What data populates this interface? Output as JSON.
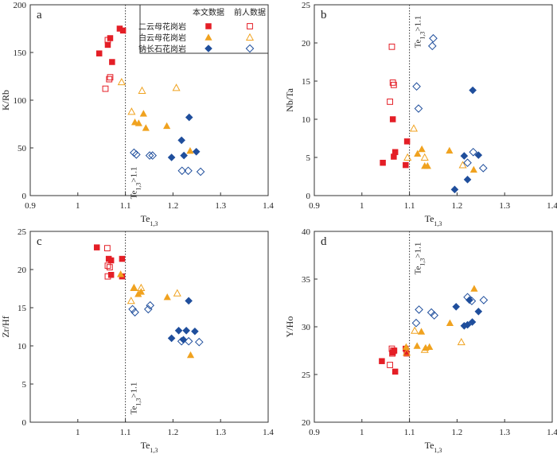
{
  "colors": {
    "red": "#e41e26",
    "orange": "#f0a21f",
    "blue": "#1f4e9c",
    "axis": "#333333"
  },
  "legend": {
    "header_this": "本文数据",
    "header_prev": "前人数据",
    "rows": [
      {
        "label": "二云母花岗岩",
        "marker": "square",
        "color": "#e41e26"
      },
      {
        "label": "白云母花岗岩",
        "marker": "triangle",
        "color": "#f0a21f"
      },
      {
        "label": "钠长石花岗岩",
        "marker": "diamond",
        "color": "#1f4e9c"
      }
    ]
  },
  "chart_data": [
    {
      "panel": "a",
      "type": "scatter",
      "xlabel": "Te1,3",
      "ylabel": "K/Rb",
      "xlim": [
        0.9,
        1.4
      ],
      "ylim": [
        0,
        200
      ],
      "xticks": [
        0.9,
        1.0,
        1.1,
        1.2,
        1.3,
        1.4
      ],
      "yticks": [
        0,
        50,
        100,
        150,
        200
      ],
      "ref_x": 1.1,
      "ref_label": "Te1,3>1.1",
      "series": [
        {
          "name": "二云母花岗岩 本文数据",
          "marker": "square",
          "color": "#e41e26",
          "filled": true,
          "x": [
            1.045,
            1.063,
            1.068,
            1.072,
            1.088,
            1.095
          ],
          "y": [
            149,
            158,
            165,
            140,
            175,
            173
          ]
        },
        {
          "name": "二云母花岗岩 前人数据",
          "marker": "square",
          "color": "#e41e26",
          "filled": false,
          "x": [
            1.058,
            1.063,
            1.066,
            1.068
          ],
          "y": [
            112,
            163,
            122,
            124
          ]
        },
        {
          "name": "白云母花岗岩 本文数据",
          "marker": "triangle",
          "color": "#f0a21f",
          "filled": true,
          "x": [
            1.12,
            1.128,
            1.138,
            1.143,
            1.187,
            1.236
          ],
          "y": [
            77,
            76,
            86,
            71,
            73,
            47
          ]
        },
        {
          "name": "白云母花岗岩 前人数据",
          "marker": "triangle",
          "color": "#f0a21f",
          "filled": false,
          "x": [
            1.092,
            1.113,
            1.135,
            1.207
          ],
          "y": [
            119,
            88,
            110,
            113
          ]
        },
        {
          "name": "钠长石花岗岩 本文数据",
          "marker": "diamond",
          "color": "#1f4e9c",
          "filled": true,
          "x": [
            1.197,
            1.218,
            1.223,
            1.234,
            1.249
          ],
          "y": [
            40,
            58,
            42,
            82,
            46
          ]
        },
        {
          "name": "钠长石花岗岩 前人数据",
          "marker": "diamond",
          "color": "#1f4e9c",
          "filled": false,
          "x": [
            1.118,
            1.123,
            1.151,
            1.157,
            1.219,
            1.232,
            1.258
          ],
          "y": [
            45,
            43,
            42,
            42,
            26,
            26,
            25
          ]
        }
      ]
    },
    {
      "panel": "b",
      "type": "scatter",
      "xlabel": "Te1,3",
      "ylabel": "Nb/Ta",
      "xlim": [
        0.9,
        1.4
      ],
      "ylim": [
        0,
        25
      ],
      "xticks": [
        0.9,
        1.0,
        1.1,
        1.2,
        1.3,
        1.4
      ],
      "yticks": [
        0,
        5,
        10,
        15,
        20,
        25
      ],
      "ref_x": 1.1,
      "ref_label": "Te1,3>1.1",
      "series": [
        {
          "name": "二云母花岗岩 本文数据",
          "marker": "square",
          "color": "#e41e26",
          "filled": true,
          "x": [
            1.044,
            1.065,
            1.067,
            1.07,
            1.092,
            1.095
          ],
          "y": [
            4.3,
            10.0,
            5.1,
            5.7,
            4.0,
            7.1
          ]
        },
        {
          "name": "二云母花岗岩 前人数据",
          "marker": "square",
          "color": "#e41e26",
          "filled": false,
          "x": [
            1.063,
            1.065,
            1.067,
            1.059
          ],
          "y": [
            19.5,
            14.8,
            14.5,
            12.3
          ]
        },
        {
          "name": "白云母花岗岩 本文数据",
          "marker": "triangle",
          "color": "#f0a21f",
          "filled": true,
          "x": [
            1.117,
            1.126,
            1.132,
            1.138,
            1.184,
            1.235
          ],
          "y": [
            5.5,
            6.1,
            3.9,
            3.9,
            5.9,
            3.4
          ]
        },
        {
          "name": "白云母花岗岩 前人数据",
          "marker": "triangle",
          "color": "#f0a21f",
          "filled": false,
          "x": [
            1.096,
            1.109,
            1.132,
            1.212
          ],
          "y": [
            5.0,
            8.8,
            5.0,
            4.0
          ]
        },
        {
          "name": "钠长石花岗岩 本文数据",
          "marker": "diamond",
          "color": "#1f4e9c",
          "filled": true,
          "x": [
            1.195,
            1.215,
            1.222,
            1.233,
            1.245
          ],
          "y": [
            0.8,
            5.2,
            2.1,
            13.8,
            5.3
          ]
        },
        {
          "name": "钠长石花岗岩 前人数据",
          "marker": "diamond",
          "color": "#1f4e9c",
          "filled": false,
          "x": [
            1.115,
            1.119,
            1.148,
            1.15,
            1.222,
            1.234,
            1.255
          ],
          "y": [
            14.3,
            11.4,
            19.6,
            20.6,
            4.3,
            5.7,
            3.6
          ]
        }
      ]
    },
    {
      "panel": "c",
      "type": "scatter",
      "xlabel": "Te1,3",
      "ylabel": "Zr/Hf",
      "xlim": [
        0.9,
        1.4
      ],
      "ylim": [
        0,
        25
      ],
      "xticks": [
        1.0,
        1.1,
        1.2,
        1.3,
        1.4
      ],
      "yticks": [
        0,
        5,
        10,
        15,
        20,
        25
      ],
      "ref_x": 1.1,
      "ref_label": "Te1,3>1.1",
      "series": [
        {
          "name": "二云母花岗岩 本文数据",
          "marker": "square",
          "color": "#e41e26",
          "filled": true,
          "x": [
            1.04,
            1.065,
            1.07,
            1.07,
            1.093,
            1.093
          ],
          "y": [
            22.9,
            21.4,
            21.2,
            19.3,
            21.4,
            19.1
          ]
        },
        {
          "name": "二云母花岗岩 前人数据",
          "marker": "square",
          "color": "#e41e26",
          "filled": false,
          "x": [
            1.062,
            1.063,
            1.067,
            1.063
          ],
          "y": [
            22.8,
            20.5,
            20.3,
            19.1
          ]
        },
        {
          "name": "白云母花岗岩 本文数据",
          "marker": "triangle",
          "color": "#f0a21f",
          "filled": true,
          "x": [
            1.09,
            1.118,
            1.127,
            1.133,
            1.188,
            1.237
          ],
          "y": [
            19.4,
            17.6,
            16.8,
            17.1,
            16.4,
            8.8
          ]
        },
        {
          "name": "白云母花岗岩 前人数据",
          "marker": "triangle",
          "color": "#f0a21f",
          "filled": false,
          "x": [
            1.112,
            1.118,
            1.133,
            1.209
          ],
          "y": [
            15.9,
            17.6,
            17.6,
            16.9
          ]
        },
        {
          "name": "钠长石花岗岩 本文数据",
          "marker": "diamond",
          "color": "#1f4e9c",
          "filled": true,
          "x": [
            1.197,
            1.212,
            1.222,
            1.228,
            1.233,
            1.246
          ],
          "y": [
            11.0,
            12.0,
            10.8,
            12.0,
            15.9,
            11.9
          ]
        },
        {
          "name": "钠长石花岗岩 前人数据",
          "marker": "diamond",
          "color": "#1f4e9c",
          "filled": false,
          "x": [
            1.115,
            1.12,
            1.148,
            1.152,
            1.218,
            1.233,
            1.255
          ],
          "y": [
            14.8,
            14.4,
            14.8,
            15.3,
            10.6,
            10.6,
            10.5
          ]
        }
      ]
    },
    {
      "panel": "d",
      "type": "scatter",
      "xlabel": "Te1,3",
      "ylabel": "Y/Ho",
      "xlim": [
        0.9,
        1.4
      ],
      "ylim": [
        20,
        40
      ],
      "xticks": [
        0.9,
        1.0,
        1.1,
        1.2,
        1.3,
        1.4
      ],
      "yticks": [
        20,
        25,
        30,
        35,
        40
      ],
      "ref_x": 1.1,
      "ref_label": "Te1,3>1.1",
      "series": [
        {
          "name": "二云母花岗岩 本文数据",
          "marker": "square",
          "color": "#e41e26",
          "filled": true,
          "x": [
            1.042,
            1.065,
            1.068,
            1.07,
            1.092,
            1.094
          ],
          "y": [
            26.4,
            27.3,
            27.5,
            25.3,
            27.7,
            27.2
          ]
        },
        {
          "name": "二云母花岗岩 前人数据",
          "marker": "square",
          "color": "#e41e26",
          "filled": false,
          "x": [
            1.059,
            1.063,
            1.066,
            1.064
          ],
          "y": [
            26.0,
            27.7,
            27.5,
            27.2
          ]
        },
        {
          "name": "白云母花岗岩 本文数据",
          "marker": "triangle",
          "color": "#f0a21f",
          "filled": true,
          "x": [
            1.093,
            1.116,
            1.125,
            1.134,
            1.142,
            1.185,
            1.236
          ],
          "y": [
            27.9,
            28.0,
            29.5,
            27.8,
            27.9,
            30.4,
            34.0
          ]
        },
        {
          "name": "白云母花岗岩 前人数据",
          "marker": "triangle",
          "color": "#f0a21f",
          "filled": false,
          "x": [
            1.094,
            1.111,
            1.132,
            1.209
          ],
          "y": [
            27.3,
            29.6,
            27.6,
            28.4
          ]
        },
        {
          "name": "钠长石花岗岩 本文数据",
          "marker": "diamond",
          "color": "#1f4e9c",
          "filled": true,
          "x": [
            1.198,
            1.215,
            1.222,
            1.226,
            1.232,
            1.245
          ],
          "y": [
            32.1,
            30.1,
            30.2,
            32.8,
            30.5,
            31.6
          ]
        },
        {
          "name": "钠长石花岗岩 前人数据",
          "marker": "diamond",
          "color": "#1f4e9c",
          "filled": false,
          "x": [
            1.114,
            1.12,
            1.146,
            1.152,
            1.222,
            1.231,
            1.256
          ],
          "y": [
            30.4,
            31.8,
            31.5,
            31.2,
            33.1,
            32.7,
            32.8
          ]
        }
      ]
    }
  ]
}
